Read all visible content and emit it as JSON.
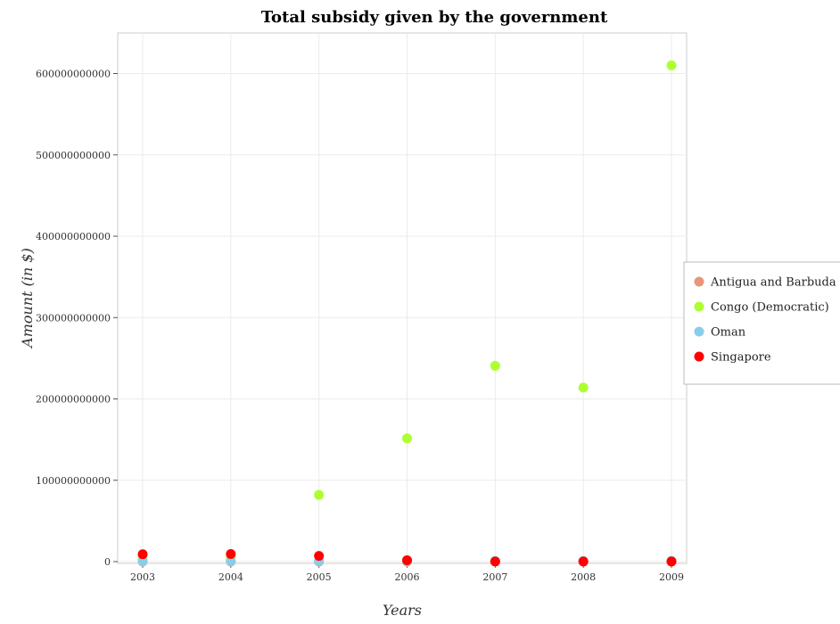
{
  "chart_data": {
    "type": "scatter",
    "title": "Total subsidy given by the government",
    "xlabel": "Years",
    "ylabel": "Amount (in $)",
    "categories": [
      "2003",
      "2004",
      "2005",
      "2006",
      "2007",
      "2008",
      "2009"
    ],
    "ylim": [
      0,
      640000000000
    ],
    "yticks": [
      {
        "value": 0,
        "label": "0"
      },
      {
        "value": 100000000000,
        "label": "100000000000"
      },
      {
        "value": 200000000000,
        "label": "200000000000"
      },
      {
        "value": 300000000000,
        "label": "300000000000"
      },
      {
        "value": 400000000000,
        "label": "400000000000"
      },
      {
        "value": 500000000000,
        "label": "500000000000"
      },
      {
        "value": 600000000000,
        "label": "600000000000"
      }
    ],
    "grid": true,
    "legend_position": "right",
    "series": [
      {
        "name": "Antigua and Barbuda",
        "color": "#e8967a",
        "values": [
          50000000,
          55000000,
          60000000,
          65000000,
          70000000,
          75000000,
          80000000
        ]
      },
      {
        "name": "Congo (Democratic)",
        "color": "#adff2f",
        "values": [
          3000000000,
          5000000000,
          82000000000,
          151500000000,
          240700000000,
          214000000000,
          610000000000
        ]
      },
      {
        "name": "Oman",
        "color": "#87ceeb",
        "values": [
          400000000,
          500000000,
          600000000,
          700000000,
          750000000,
          850000000,
          900000000
        ]
      },
      {
        "name": "Singapore",
        "color": "#ff0000",
        "values": [
          9000000000,
          9300000000,
          7000000000,
          1700000000,
          100000000,
          100000000,
          100000000
        ]
      }
    ]
  }
}
